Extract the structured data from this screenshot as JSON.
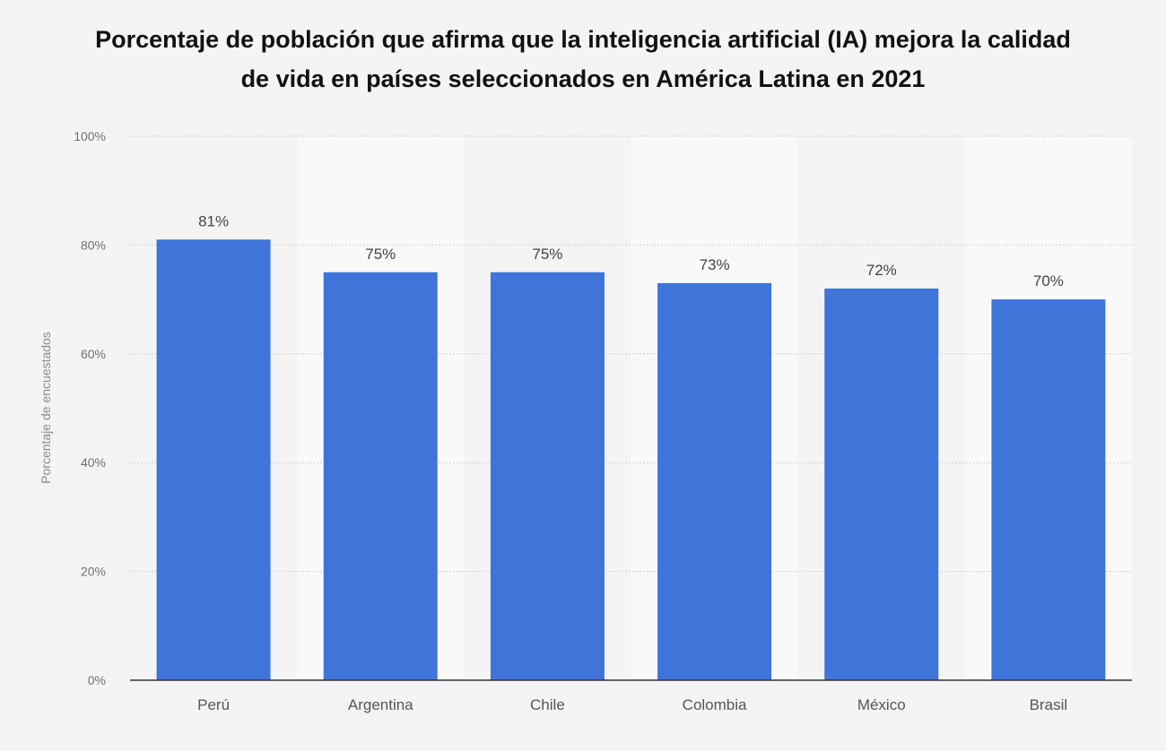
{
  "title_line1": "Porcentaje de población que afirma que la inteligencia artificial (IA) mejora la calidad",
  "title_line2": "de vida en países seleccionados en América Latina en 2021",
  "chart_data": {
    "type": "bar",
    "categories": [
      "Perú",
      "Argentina",
      "Chile",
      "Colombia",
      "México",
      "Brasil"
    ],
    "values": [
      81,
      75,
      75,
      73,
      72,
      70
    ],
    "data_labels": [
      "81%",
      "75%",
      "75%",
      "73%",
      "72%",
      "70%"
    ],
    "ylabel": "Porcentaje de encuestados",
    "ylim": [
      0,
      100
    ],
    "yticks": [
      0,
      20,
      40,
      60,
      80,
      100
    ],
    "ytick_labels": [
      "0%",
      "20%",
      "40%",
      "60%",
      "80%",
      "100%"
    ],
    "grid": true,
    "colors": {
      "bar": "#3f74d8",
      "band": "#f9f9f9",
      "grid": "#cfcfcf",
      "axis": "#333333"
    }
  }
}
